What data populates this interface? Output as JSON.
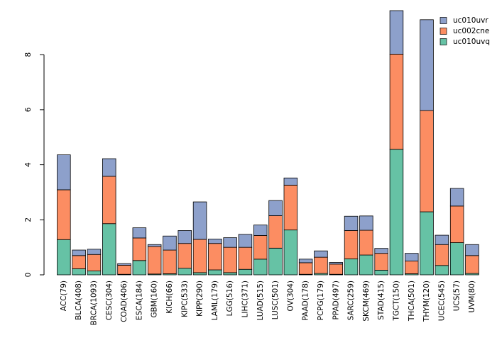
{
  "chart_data": {
    "type": "bar",
    "stacked": true,
    "title": "",
    "xlabel": "",
    "ylabel": "",
    "ylim": [
      0,
      9.6
    ],
    "yticks": [
      0,
      2,
      4,
      6,
      8
    ],
    "legend_position": "top-right",
    "categories": [
      "ACC(79)",
      "BLCA(408)",
      "BRCA(1093)",
      "CESC(304)",
      "COAD(406)",
      "ESCA(184)",
      "GBM(160)",
      "KICH(66)",
      "KIPC(533)",
      "KIPP(290)",
      "LAML(179)",
      "LGG(516)",
      "LIHC(371)",
      "LUAD(515)",
      "LUSC(501)",
      "OV(304)",
      "PAAD(178)",
      "PCPG(179)",
      "PPAD(497)",
      "SARC(259)",
      "SKCM(469)",
      "STAD(415)",
      "TGCT(150)",
      "THCA(501)",
      "THYM(120)",
      "UCEC(545)",
      "UCS(57)",
      "UVM(80)"
    ],
    "series": [
      {
        "name": "uc010uvq",
        "color": "#66c2a5",
        "values": [
          1.28,
          0.22,
          0.14,
          1.86,
          0.02,
          0.52,
          0.03,
          0.04,
          0.24,
          0.08,
          0.18,
          0.08,
          0.2,
          0.57,
          0.97,
          1.63,
          0.02,
          0.05,
          0.02,
          0.58,
          0.72,
          0.17,
          4.56,
          0.04,
          2.29,
          0.34,
          1.17,
          0.05
        ]
      },
      {
        "name": "uc002cne",
        "color": "#fc8d62",
        "values": [
          1.81,
          0.48,
          0.6,
          1.72,
          0.33,
          0.82,
          1.0,
          0.86,
          0.9,
          1.21,
          0.96,
          0.92,
          0.8,
          0.86,
          1.18,
          1.63,
          0.42,
          0.59,
          0.37,
          1.03,
          0.9,
          0.61,
          3.46,
          0.46,
          3.68,
          0.76,
          1.33,
          0.65
        ]
      },
      {
        "name": "uc010uvr",
        "color": "#8da0cb",
        "values": [
          1.27,
          0.2,
          0.19,
          0.64,
          0.06,
          0.37,
          0.07,
          0.51,
          0.47,
          1.36,
          0.16,
          0.35,
          0.47,
          0.38,
          0.55,
          0.26,
          0.13,
          0.23,
          0.06,
          0.52,
          0.52,
          0.18,
          1.58,
          0.28,
          3.3,
          0.34,
          0.64,
          0.4
        ]
      }
    ],
    "legend_order": [
      "uc010uvr",
      "uc002cne",
      "uc010uvq"
    ]
  }
}
